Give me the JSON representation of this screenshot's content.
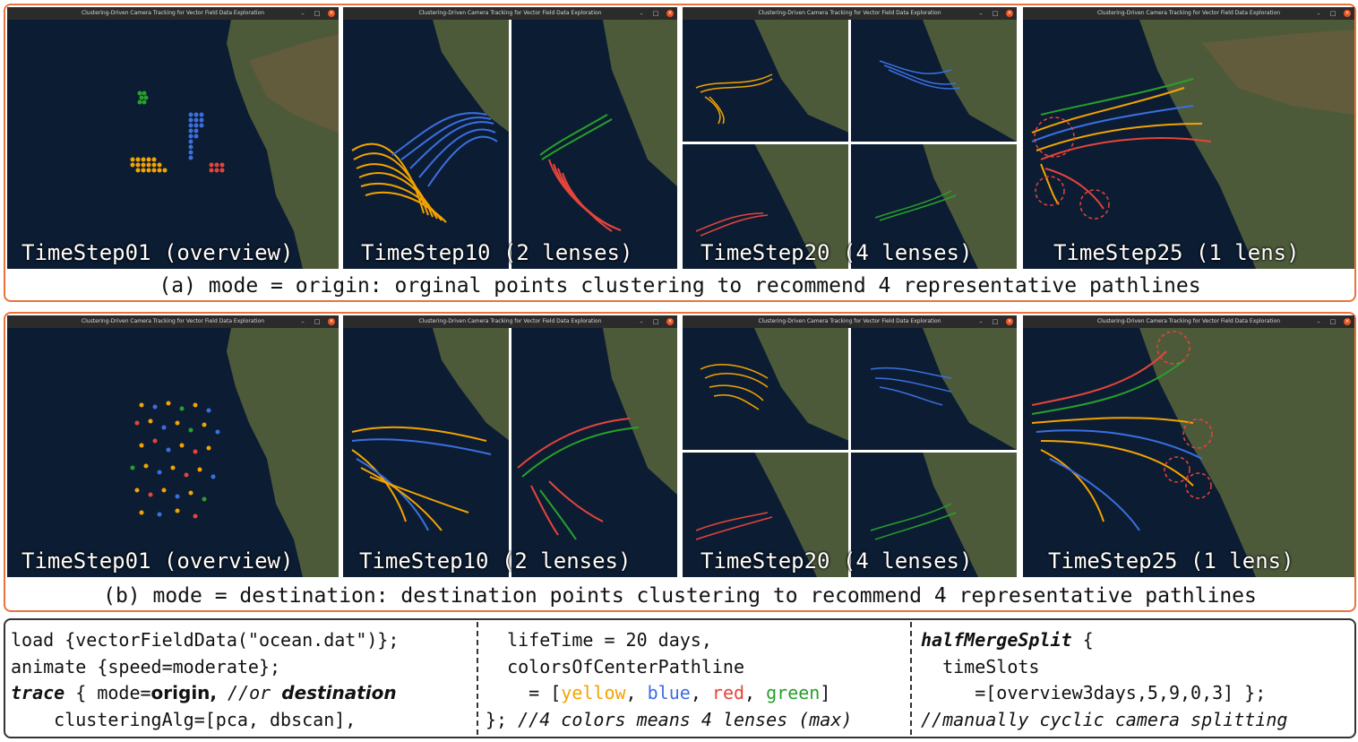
{
  "window_title": "Clustering-Driven Camera Tracking for Vector Field Data Exploration",
  "window_buttons": [
    "–",
    "□",
    "×"
  ],
  "colors": {
    "accent_border": "#e8743b",
    "yellow": "#f4a300",
    "blue": "#3b6fe0",
    "red": "#e5443a",
    "green": "#27a02a",
    "ocean": "#0b1a2e",
    "land": "#5a5a3a"
  },
  "section_a": {
    "caption": "(a) mode = origin: orginal points clustering to recommend 4 representative pathlines",
    "panels": [
      {
        "caption": "TimeStep01 (overview)"
      },
      {
        "caption": "TimeStep10 (2 lenses)"
      },
      {
        "caption": "TimeStep20 (4 lenses)"
      },
      {
        "caption": "TimeStep25 (1 lens)"
      }
    ]
  },
  "section_b": {
    "caption": "(b) mode = destination: destination points clustering to recommend 4 representative pathlines",
    "panels": [
      {
        "caption": "TimeStep01 (overview)"
      },
      {
        "caption": "TimeStep10 (2 lenses)"
      },
      {
        "caption": "TimeStep20 (4 lenses)"
      },
      {
        "caption": "TimeStep25 (1 lens)"
      }
    ]
  },
  "code": {
    "col1": {
      "line1": "load {vectorFieldData(\"ocean.dat\")};",
      "line2": "animate {speed=moderate};",
      "line3_kw": "trace",
      "line3_a": " { mode=",
      "line3_origin": "origin,",
      "line3_comment": " //or ",
      "line3_dest": "destination",
      "line4": "    clusteringAlg=[pca, dbscan],"
    },
    "col2": {
      "line1": "  lifeTime = 20 days,",
      "line2": "  colorsOfCenterPathline",
      "line3_pre": "    = [",
      "yellow": "yellow",
      "sep1": ", ",
      "blue": "blue",
      "sep2": ", ",
      "red": "red",
      "sep3": ", ",
      "green": "green",
      "line3_post": "]",
      "line4_pre": "}; ",
      "line4_comment": "//4 colors means 4 lenses (max)"
    },
    "col3": {
      "line1_kw": "halfMergeSplit",
      "line1_post": " {",
      "line2": "  timeSlots",
      "line3": "     =[overview3days,5,9,0,3] };",
      "line4_comment": "//manually cyclic camera splitting"
    }
  }
}
